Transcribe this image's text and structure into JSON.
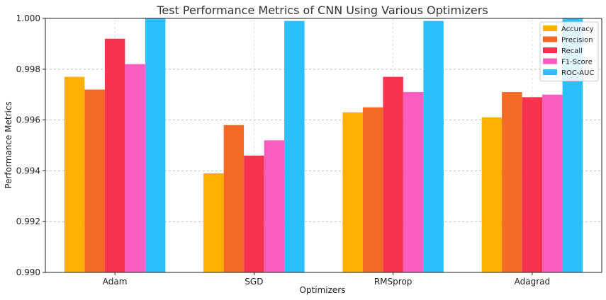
{
  "chart_data": {
    "type": "bar",
    "title": "Test Performance Metrics of CNN Using Various Optimizers",
    "xlabel": "Optimizers",
    "ylabel": "Performance Metrics",
    "categories": [
      "Adam",
      "SGD",
      "RMSprop",
      "Adagrad"
    ],
    "ylim": [
      0.99,
      1.0
    ],
    "yticks": [
      "0.990",
      "0.992",
      "0.994",
      "0.996",
      "0.998",
      "1.000"
    ],
    "grid": true,
    "legend_position": "top-right",
    "series": [
      {
        "name": "Accuracy",
        "color": "#FFB000",
        "values": [
          0.9977,
          0.9939,
          0.9963,
          0.9961
        ]
      },
      {
        "name": "Precision",
        "color": "#F46A25",
        "values": [
          0.9972,
          0.9958,
          0.9965,
          0.9971
        ]
      },
      {
        "name": "Recall",
        "color": "#F7344F",
        "values": [
          0.9992,
          0.9946,
          0.9977,
          0.9969
        ]
      },
      {
        "name": "F1-Score",
        "color": "#FA5CC0",
        "values": [
          0.9982,
          0.9952,
          0.9971,
          0.997
        ]
      },
      {
        "name": "ROC-AUC",
        "color": "#2BBFFC",
        "values": [
          1.0,
          0.9999,
          0.9999,
          1.0
        ]
      }
    ]
  }
}
